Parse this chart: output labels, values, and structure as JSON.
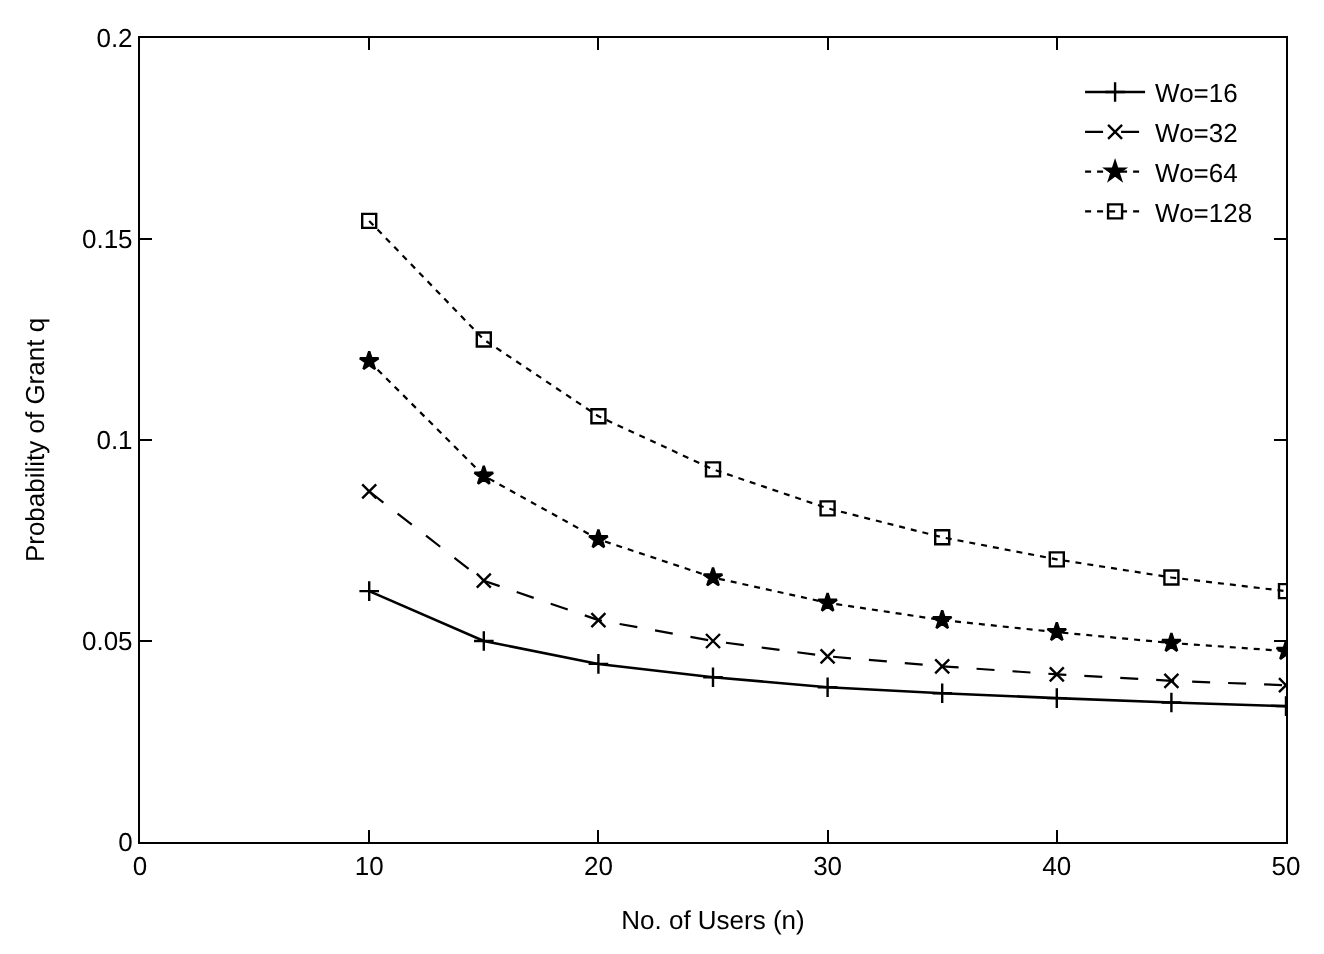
{
  "chart_data": {
    "type": "line",
    "xlabel": "No. of Users (n)",
    "ylabel": "Probability of Grant q",
    "x": [
      10,
      15,
      20,
      25,
      30,
      35,
      40,
      45,
      50
    ],
    "xlim": [
      0,
      50
    ],
    "xticks": [
      0,
      10,
      20,
      30,
      40,
      50
    ],
    "ylim": [
      0,
      0.2
    ],
    "yticks": [
      0,
      0.05,
      0.1,
      0.15,
      0.2
    ],
    "legend": "top right",
    "series": [
      {
        "name": "Wo=16",
        "color": "#000000",
        "marker": "cross",
        "line_style": "solid",
        "values": [
          0.0624,
          0.05,
          0.0443,
          0.041,
          0.0385,
          0.037,
          0.0358,
          0.0347,
          0.0338
        ]
      },
      {
        "name": "Wo=32",
        "color": "#000000",
        "marker": "cross",
        "line_style": "dashed",
        "values": [
          0.0872,
          0.065,
          0.0552,
          0.05,
          0.0462,
          0.0437,
          0.0417,
          0.0401,
          0.039
        ]
      },
      {
        "name": "Wo=64",
        "color": "#000000",
        "marker": "star",
        "line_style": "dotted",
        "values": [
          0.1196,
          0.0911,
          0.0753,
          0.0658,
          0.0595,
          0.0552,
          0.0522,
          0.0495,
          0.0475
        ]
      },
      {
        "name": "Wo=128",
        "color": "#000000",
        "marker": "square",
        "line_style": "dotted",
        "values": [
          0.1545,
          0.125,
          0.1059,
          0.0927,
          0.083,
          0.0758,
          0.0703,
          0.0658,
          0.0624
        ]
      }
    ]
  }
}
